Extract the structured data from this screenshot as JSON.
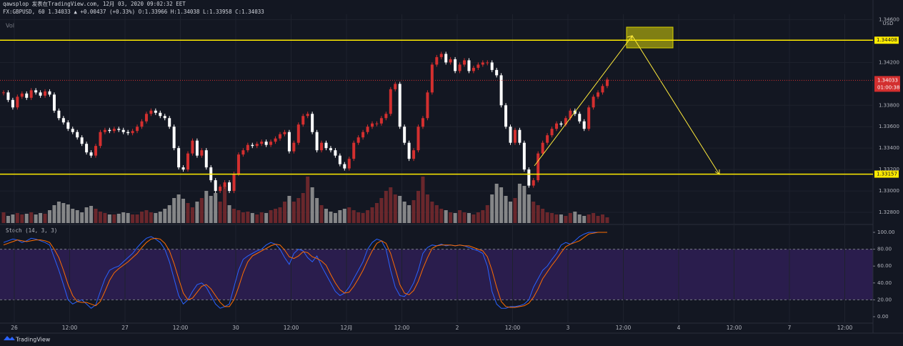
{
  "chart_data": {
    "type": "candlestick",
    "header_line1": "qawsplop 发表在TradingView.com, 12月 03, 2020 09:02:32 EET",
    "header_line2": "FX:GBPUSD, 60 1.34033 ▲ +0.00437 (+0.33%) O:1.33966 H:1.34038 L:1.33958 C:1.34033",
    "volume_label": "Vol",
    "stoch_label": "Stoch (14, 3, 3)",
    "currency": "USD",
    "brand": "TradingView",
    "up_color": "#d32f2f",
    "down_color": "#ffffff",
    "volume_up_color": "#7a2a2e",
    "volume_down_color": "#9a9a9a",
    "k_color": "#2962ff",
    "d_color": "#ff6d00",
    "level_color": "#ffeb00",
    "ylim": [
      1.327,
      1.3465
    ],
    "yticks": [
      {
        "value": 1.346,
        "label": "1.34600"
      },
      {
        "value": 1.342,
        "label": "1.34200"
      },
      {
        "value": 1.338,
        "label": "1.33800"
      },
      {
        "value": 1.336,
        "label": "1.33600"
      },
      {
        "value": 1.334,
        "label": "1.33400"
      },
      {
        "value": 1.332,
        "label": "1.33200"
      },
      {
        "value": 1.33,
        "label": "1.33000"
      },
      {
        "value": 1.328,
        "label": "1.32800"
      }
    ],
    "levels": [
      {
        "value": 1.34408,
        "label": "1.34408"
      },
      {
        "value": 1.33157,
        "label": "1.33157"
      }
    ],
    "last_price": {
      "value": 1.34033,
      "label": "1.34033"
    },
    "countdown": "01:00:38",
    "time_labels": [
      "26",
      "12:00",
      "27",
      "12:00",
      "30",
      "12:00",
      "12月",
      "12:00",
      "2",
      "12:00",
      "3",
      "12:00",
      "4",
      "12:00",
      "7",
      "12:00"
    ],
    "close": [
      1.3392,
      1.3385,
      1.3378,
      1.3388,
      1.3391,
      1.3387,
      1.3394,
      1.3392,
      1.3389,
      1.3393,
      1.339,
      1.3375,
      1.3368,
      1.3364,
      1.3358,
      1.3355,
      1.335,
      1.3344,
      1.3336,
      1.3333,
      1.3342,
      1.3355,
      1.3357,
      1.3356,
      1.3358,
      1.3357,
      1.3355,
      1.3354,
      1.3356,
      1.336,
      1.3365,
      1.3372,
      1.3375,
      1.3373,
      1.337,
      1.3368,
      1.336,
      1.334,
      1.3322,
      1.332,
      1.3335,
      1.3347,
      1.3333,
      1.3338,
      1.3322,
      1.331,
      1.33,
      1.3304,
      1.3308,
      1.33,
      1.3316,
      1.3334,
      1.3338,
      1.3343,
      1.3342,
      1.3344,
      1.3346,
      1.3343,
      1.3346,
      1.3349,
      1.3353,
      1.3355,
      1.3337,
      1.3345,
      1.3362,
      1.337,
      1.3372,
      1.3355,
      1.3338,
      1.3345,
      1.334,
      1.3338,
      1.3333,
      1.3325,
      1.3321,
      1.333,
      1.3345,
      1.335,
      1.3355,
      1.336,
      1.3363,
      1.3363,
      1.3368,
      1.3372,
      1.3395,
      1.34,
      1.336,
      1.3345,
      1.333,
      1.3338,
      1.336,
      1.3368,
      1.3392,
      1.3418,
      1.3425,
      1.3428,
      1.342,
      1.3423,
      1.3412,
      1.3418,
      1.3422,
      1.3412,
      1.3415,
      1.3418,
      1.342,
      1.342,
      1.3413,
      1.3408,
      1.338,
      1.336,
      1.3345,
      1.3357,
      1.3345,
      1.332,
      1.3305,
      1.331,
      1.3335,
      1.3345,
      1.3352,
      1.3358,
      1.3363,
      1.3362,
      1.3368,
      1.3375,
      1.3372,
      1.3365,
      1.3358,
      1.3378,
      1.3388,
      1.3392,
      1.3398,
      1.3404
    ],
    "volume": [
      15,
      10,
      12,
      14,
      12,
      13,
      15,
      12,
      14,
      13,
      18,
      25,
      30,
      28,
      26,
      20,
      18,
      15,
      22,
      24,
      20,
      16,
      14,
      12,
      12,
      13,
      15,
      14,
      12,
      12,
      16,
      18,
      15,
      14,
      16,
      20,
      25,
      35,
      40,
      34,
      28,
      22,
      30,
      35,
      45,
      38,
      42,
      30,
      52,
      25,
      20,
      18,
      15,
      16,
      14,
      12,
      15,
      14,
      18,
      20,
      22,
      30,
      38,
      30,
      35,
      42,
      65,
      50,
      35,
      25,
      20,
      16,
      14,
      18,
      20,
      22,
      18,
      15,
      14,
      18,
      22,
      28,
      35,
      45,
      50,
      40,
      38,
      30,
      25,
      32,
      45,
      65,
      40,
      30,
      25,
      20,
      18,
      15,
      14,
      18,
      15,
      14,
      12,
      15,
      18,
      25,
      40,
      55,
      50,
      38,
      30,
      35,
      55,
      52,
      40,
      30,
      25,
      20,
      15,
      14,
      12,
      12,
      10,
      14,
      16,
      12,
      10,
      12,
      14,
      10,
      12,
      8
    ],
    "stoch_ylim": [
      0,
      100
    ],
    "stoch_yticks": [
      {
        "value": 0,
        "label": "0.00"
      },
      {
        "value": 20,
        "label": "20.00"
      },
      {
        "value": 40,
        "label": "40.00"
      },
      {
        "value": 60,
        "label": "60.00"
      },
      {
        "value": 80,
        "label": "80.00"
      },
      {
        "value": 100,
        "label": "100.00"
      }
    ],
    "stoch_k": [
      88,
      90,
      92,
      91,
      88,
      90,
      93,
      92,
      90,
      88,
      85,
      70,
      55,
      38,
      20,
      15,
      18,
      20,
      15,
      10,
      14,
      30,
      45,
      55,
      58,
      60,
      65,
      70,
      75,
      82,
      88,
      93,
      95,
      92,
      88,
      80,
      65,
      45,
      25,
      15,
      20,
      30,
      38,
      40,
      35,
      25,
      15,
      10,
      12,
      15,
      35,
      55,
      68,
      72,
      75,
      78,
      80,
      85,
      88,
      86,
      80,
      70,
      62,
      75,
      80,
      78,
      70,
      65,
      72,
      60,
      50,
      40,
      30,
      25,
      28,
      35,
      45,
      55,
      65,
      80,
      88,
      92,
      90,
      80,
      55,
      35,
      25,
      24,
      30,
      40,
      55,
      75,
      82,
      85,
      84,
      86,
      84,
      85,
      84,
      85,
      84,
      82,
      80,
      78,
      75,
      60,
      30,
      15,
      10,
      10,
      12,
      12,
      13,
      15,
      20,
      35,
      45,
      55,
      60,
      68,
      75,
      85,
      88,
      86,
      90,
      95,
      98,
      100,
      100,
      100,
      100,
      100
    ],
    "stoch_d": [
      85,
      87,
      89,
      91,
      90,
      89,
      90,
      91,
      91,
      90,
      88,
      80,
      70,
      55,
      38,
      25,
      18,
      17,
      17,
      15,
      13,
      18,
      30,
      43,
      52,
      57,
      61,
      65,
      70,
      75,
      82,
      88,
      92,
      93,
      92,
      87,
      78,
      63,
      45,
      28,
      20,
      22,
      29,
      36,
      38,
      33,
      25,
      17,
      12,
      12,
      20,
      35,
      52,
      65,
      72,
      75,
      78,
      81,
      84,
      86,
      85,
      79,
      71,
      69,
      72,
      77,
      76,
      71,
      69,
      66,
      61,
      50,
      40,
      32,
      28,
      29,
      36,
      45,
      55,
      67,
      78,
      87,
      90,
      87,
      75,
      57,
      38,
      28,
      26,
      31,
      42,
      57,
      70,
      81,
      84,
      85,
      85,
      85,
      84,
      85,
      84,
      84,
      82,
      80,
      78,
      71,
      55,
      35,
      18,
      12,
      11,
      11,
      12,
      13,
      16,
      23,
      33,
      45,
      53,
      61,
      68,
      76,
      83,
      86,
      88,
      90,
      94,
      98,
      99,
      100,
      100,
      100
    ]
  }
}
